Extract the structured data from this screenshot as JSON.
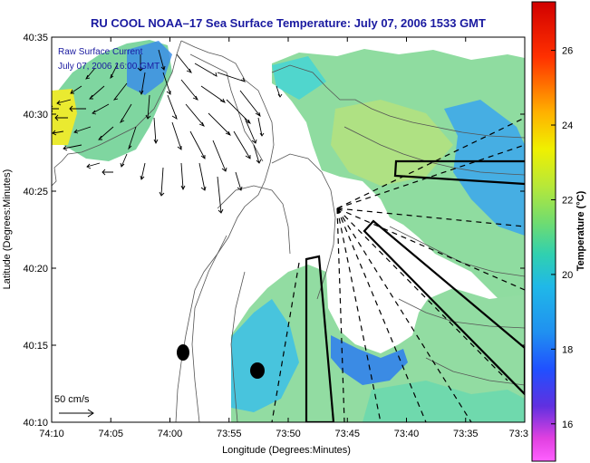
{
  "chart_data": {
    "type": "heatmap",
    "title": "RU COOL  NOAA–17  Sea Surface Temperature:  July 07, 2006 1533 GMT",
    "xlabel": "Longitude (Degrees:Minutes)",
    "ylabel": "Latitude (Degrees:Minutes)",
    "x_ticks": [
      "74:10",
      "74:05",
      "74:00",
      "73:55",
      "73:50",
      "73:45",
      "73:40",
      "73:35",
      "73:3"
    ],
    "y_ticks": [
      "40:35",
      "40:30",
      "40:25",
      "40:20",
      "40:15",
      "40:10"
    ],
    "xlim": [
      "74:10",
      "73:30"
    ],
    "ylim": [
      "40:10",
      "40:35"
    ],
    "annotation_lines": [
      "Raw Surface Current",
      "July 07, 2006 16:00 GMT"
    ],
    "vector_scale_label": "50 cm/s",
    "colorbar": {
      "label": "Temperature (°C)",
      "range": [
        15,
        27.3
      ],
      "ticks": [
        "26",
        "24",
        "22",
        "20",
        "18",
        "16"
      ],
      "colors": [
        "#d10000",
        "#ff3000",
        "#ffb000",
        "#f0f000",
        "#b8e838",
        "#70dc70",
        "#30d0b0",
        "#20b8e8",
        "#2090f0",
        "#2050ff",
        "#6030e0",
        "#e040e0",
        "#ff60ff"
      ]
    },
    "grid": false
  }
}
